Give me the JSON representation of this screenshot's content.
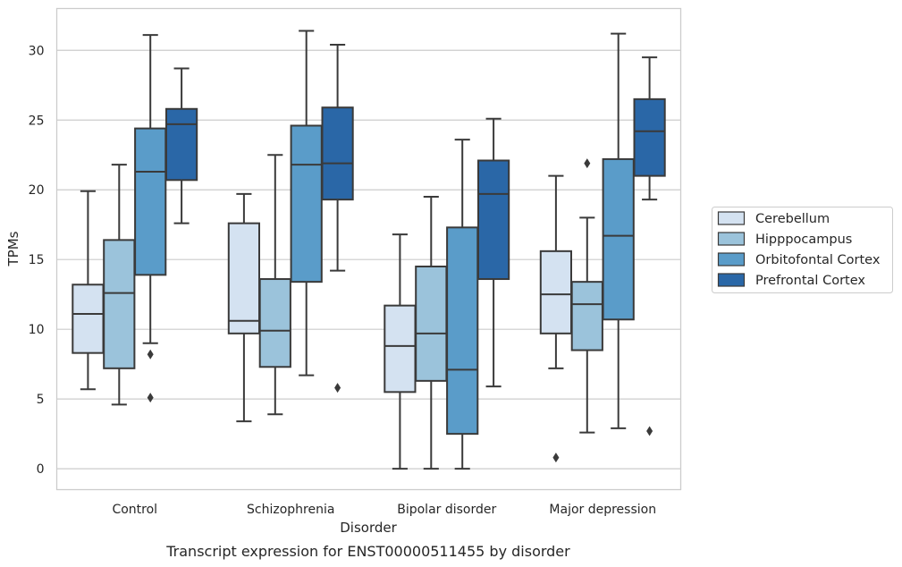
{
  "chart_data": {
    "type": "box",
    "caption": "Transcript expression for ENST00000511455 by disorder",
    "xlabel": "Disorder",
    "ylabel": "TPMs",
    "ylim": [
      -1.5,
      33
    ],
    "yticks": [
      0,
      5,
      10,
      15,
      20,
      25,
      30
    ],
    "grid": "horizontal",
    "legend_position": "right",
    "categories": [
      "Control",
      "Schizophrenia",
      "Bipolar disorder",
      "Major depression"
    ],
    "series": [
      {
        "name": "Cerebellum",
        "color": "#d4e2f1",
        "boxes": [
          {
            "whisker_low": 5.7,
            "q1": 8.3,
            "median": 11.1,
            "q3": 13.2,
            "whisker_high": 19.9,
            "outliers": []
          },
          {
            "whisker_low": 3.4,
            "q1": 9.7,
            "median": 10.6,
            "q3": 17.6,
            "whisker_high": 19.7,
            "outliers": []
          },
          {
            "whisker_low": 0.0,
            "q1": 5.5,
            "median": 8.8,
            "q3": 11.7,
            "whisker_high": 16.8,
            "outliers": []
          },
          {
            "whisker_low": 7.2,
            "q1": 9.7,
            "median": 12.5,
            "q3": 15.6,
            "whisker_high": 21.0,
            "outliers": [
              0.8
            ]
          }
        ]
      },
      {
        "name": "Hipppocampus",
        "color": "#9bc3db",
        "boxes": [
          {
            "whisker_low": 4.6,
            "q1": 7.2,
            "median": 12.6,
            "q3": 16.4,
            "whisker_high": 21.8,
            "outliers": []
          },
          {
            "whisker_low": 3.9,
            "q1": 7.3,
            "median": 9.9,
            "q3": 13.6,
            "whisker_high": 22.5,
            "outliers": []
          },
          {
            "whisker_low": 0.0,
            "q1": 6.3,
            "median": 9.7,
            "q3": 14.5,
            "whisker_high": 19.5,
            "outliers": []
          },
          {
            "whisker_low": 2.6,
            "q1": 8.5,
            "median": 11.8,
            "q3": 13.4,
            "whisker_high": 18.0,
            "outliers": [
              21.9
            ]
          }
        ]
      },
      {
        "name": "Orbitofontal Cortex",
        "color": "#5a9cc9",
        "boxes": [
          {
            "whisker_low": 9.0,
            "q1": 13.9,
            "median": 21.3,
            "q3": 24.4,
            "whisker_high": 31.1,
            "outliers": [
              8.2,
              5.1
            ]
          },
          {
            "whisker_low": 6.7,
            "q1": 13.4,
            "median": 21.8,
            "q3": 24.6,
            "whisker_high": 31.4,
            "outliers": []
          },
          {
            "whisker_low": 0.0,
            "q1": 2.5,
            "median": 7.1,
            "q3": 17.3,
            "whisker_high": 23.6,
            "outliers": []
          },
          {
            "whisker_low": 2.9,
            "q1": 10.7,
            "median": 16.7,
            "q3": 22.2,
            "whisker_high": 31.2,
            "outliers": []
          }
        ]
      },
      {
        "name": "Prefrontal Cortex",
        "color": "#2a67a7",
        "boxes": [
          {
            "whisker_low": 17.6,
            "q1": 20.7,
            "median": 24.7,
            "q3": 25.8,
            "whisker_high": 28.7,
            "outliers": []
          },
          {
            "whisker_low": 14.2,
            "q1": 19.3,
            "median": 21.9,
            "q3": 25.9,
            "whisker_high": 30.4,
            "outliers": [
              5.8
            ]
          },
          {
            "whisker_low": 5.9,
            "q1": 13.6,
            "median": 19.7,
            "q3": 22.1,
            "whisker_high": 25.1,
            "outliers": []
          },
          {
            "whisker_low": 19.3,
            "q1": 21.0,
            "median": 24.2,
            "q3": 26.5,
            "whisker_high": 29.5,
            "outliers": [
              2.7
            ]
          }
        ]
      }
    ]
  }
}
